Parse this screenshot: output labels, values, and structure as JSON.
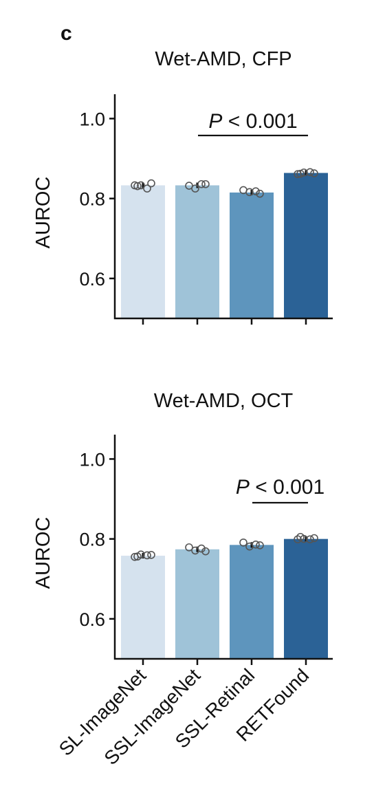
{
  "panel_label": "c",
  "categories": [
    "SL-ImageNet",
    "SSL-ImageNet",
    "SSL-Retinal",
    "RETFound"
  ],
  "colors": [
    "#d5e2ee",
    "#9fc3d8",
    "#5e95bd",
    "#2b6296"
  ],
  "chart_data": [
    {
      "type": "bar",
      "title": "Wet-AMD, CFP",
      "ylabel": "AUROC",
      "ylim": [
        0.5,
        1.03
      ],
      "yticks": [
        "1.0",
        "0.8",
        "0.6"
      ],
      "categories": [
        "SL-ImageNet",
        "SSL-ImageNet",
        "SSL-Retinal",
        "RETFound"
      ],
      "values": [
        0.833,
        0.833,
        0.815,
        0.864
      ],
      "points": [
        [
          0.833,
          0.833,
          0.825,
          0.838,
          0.831
        ],
        [
          0.832,
          0.825,
          0.836,
          0.836
        ],
        [
          0.821,
          0.816,
          0.818,
          0.812
        ],
        [
          0.861,
          0.865,
          0.866,
          0.863,
          0.862
        ]
      ],
      "annotation": {
        "p_label": "P",
        "p_rest": "< 0.001",
        "from": 1,
        "to": 3
      }
    },
    {
      "type": "bar",
      "title": "Wet-AMD, OCT",
      "ylabel": "AUROC",
      "ylim": [
        0.5,
        1.03
      ],
      "yticks": [
        "1.0",
        "0.8",
        "0.6"
      ],
      "categories": [
        "SL-ImageNet",
        "SSL-ImageNet",
        "SSL-Retinal",
        "RETFound"
      ],
      "values": [
        0.758,
        0.774,
        0.785,
        0.8
      ],
      "points": [
        [
          0.755,
          0.761,
          0.759,
          0.76,
          0.756
        ],
        [
          0.779,
          0.771,
          0.776,
          0.769
        ],
        [
          0.791,
          0.781,
          0.786,
          0.784
        ],
        [
          0.799,
          0.8,
          0.799,
          0.802,
          0.805
        ]
      ],
      "annotation": {
        "p_label": "P",
        "p_rest": "< 0.001",
        "from": 2,
        "to": 3
      }
    }
  ]
}
